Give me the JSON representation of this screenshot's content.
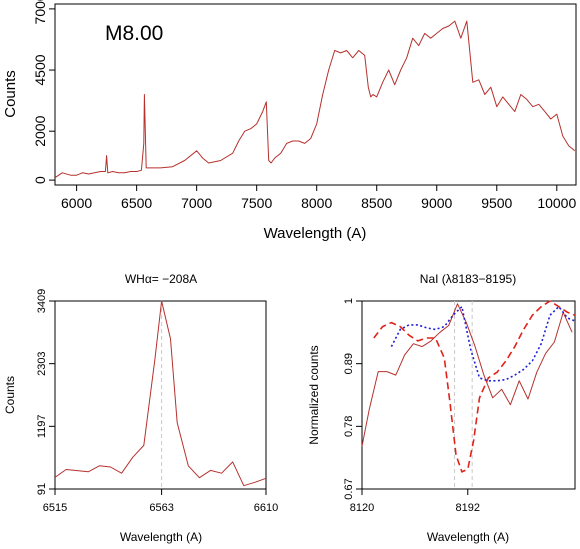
{
  "colors": {
    "spectrum": "#b5312d",
    "template_red": "#e0231b",
    "template_blue": "#1f1fd6",
    "marker": "#c8c8c8"
  },
  "chart_data": [
    {
      "type": "line",
      "annotation": "M8.00",
      "xlabel": "Wavelength (A)",
      "ylabel": "Counts",
      "xlim": [
        5820,
        10160
      ],
      "ylim": [
        -200,
        7200
      ],
      "xticks": [
        6000,
        6500,
        7000,
        7500,
        8000,
        8500,
        9000,
        9500,
        10000
      ],
      "yticks": [
        0,
        2000,
        4500,
        7000
      ],
      "series": [
        {
          "x": [
            5820,
            5880,
            5950,
            6000,
            6050,
            6100,
            6150,
            6200,
            6240,
            6250,
            6260,
            6300,
            6350,
            6400,
            6450,
            6500,
            6540,
            6560,
            6565,
            6580,
            6620,
            6700,
            6800,
            6900,
            7000,
            7050,
            7100,
            7200,
            7300,
            7350,
            7400,
            7450,
            7500,
            7550,
            7580,
            7600,
            7620,
            7650,
            7700,
            7750,
            7800,
            7850,
            7900,
            7950,
            8000,
            8050,
            8100,
            8150,
            8200,
            8250,
            8300,
            8350,
            8400,
            8430,
            8450,
            8470,
            8500,
            8550,
            8600,
            8650,
            8700,
            8750,
            8800,
            8850,
            8900,
            8950,
            9000,
            9050,
            9100,
            9150,
            9200,
            9250,
            9300,
            9350,
            9400,
            9450,
            9500,
            9550,
            9600,
            9650,
            9700,
            9750,
            9800,
            9850,
            9900,
            9950,
            10000,
            10050,
            10100,
            10150
          ],
          "y": [
            100,
            300,
            200,
            200,
            300,
            250,
            300,
            350,
            350,
            1000,
            300,
            350,
            300,
            300,
            350,
            350,
            400,
            1500,
            3500,
            500,
            500,
            500,
            550,
            800,
            1200,
            900,
            700,
            800,
            1100,
            1600,
            2000,
            2100,
            2300,
            2800,
            3200,
            800,
            700,
            900,
            1100,
            1500,
            1600,
            1600,
            1500,
            1700,
            2300,
            3500,
            4500,
            5300,
            5200,
            5300,
            5000,
            5300,
            5100,
            3800,
            3400,
            3500,
            3400,
            4000,
            4500,
            3900,
            4500,
            5000,
            5800,
            5500,
            6000,
            5800,
            6000,
            6200,
            6300,
            6500,
            5800,
            6500,
            4000,
            4100,
            3500,
            3800,
            3000,
            3400,
            3100,
            2800,
            3500,
            3300,
            3000,
            3100,
            2800,
            2500,
            2700,
            1800,
            1400,
            1200
          ]
        }
      ]
    },
    {
      "type": "line",
      "title": "WHα= −208A",
      "xlabel": "Wavelength (A)",
      "ylabel": "Counts",
      "xlim": [
        6515,
        6610
      ],
      "ylim": [
        91,
        3409
      ],
      "xticks": [
        6515,
        6563,
        6610
      ],
      "yticks": [
        91,
        1197,
        2303,
        3409
      ],
      "marker_x": 6563,
      "series": [
        {
          "x": [
            6515,
            6520,
            6530,
            6535,
            6540,
            6545,
            6550,
            6555,
            6560,
            6563,
            6567,
            6570,
            6575,
            6580,
            6585,
            6590,
            6595,
            6600,
            6605,
            6610
          ],
          "y": [
            295,
            435,
            395,
            500,
            480,
            370,
            650,
            860,
            2380,
            3409,
            2740,
            1260,
            500,
            290,
            420,
            370,
            570,
            150,
            210,
            280
          ]
        }
      ]
    },
    {
      "type": "line",
      "title": "NaI (λ8183−8195)",
      "xlabel": "Wavelength (A)",
      "ylabel": "Normalized counts",
      "xlim": [
        8120,
        8265
      ],
      "ylim": [
        0.67,
        1.0
      ],
      "xticks": [
        8120,
        8192
      ],
      "yticks": [
        0.67,
        0.78,
        0.89,
        1
      ],
      "markers_x": [
        8183,
        8195
      ],
      "series": [
        {
          "style": "solid",
          "x": [
            8120,
            8125,
            8131,
            8137,
            8143,
            8149,
            8155,
            8161,
            8167,
            8173,
            8179,
            8185,
            8191,
            8197,
            8203,
            8209,
            8215,
            8221,
            8227,
            8233,
            8239,
            8245,
            8251,
            8257,
            8263
          ],
          "y": [
            0.745,
            0.81,
            0.876,
            0.876,
            0.87,
            0.905,
            0.925,
            0.92,
            0.93,
            0.945,
            0.957,
            0.995,
            0.962,
            0.92,
            0.87,
            0.83,
            0.845,
            0.818,
            0.86,
            0.828,
            0.875,
            0.908,
            0.928,
            0.98,
            0.945
          ]
        },
        {
          "style": "dashed",
          "color": "template_red",
          "x": [
            8128,
            8134,
            8140,
            8146,
            8152,
            8158,
            8164,
            8170,
            8176,
            8180,
            8184,
            8188,
            8192,
            8196,
            8200,
            8206,
            8212,
            8218,
            8224,
            8230,
            8236,
            8242,
            8248,
            8254,
            8260,
            8265
          ],
          "y": [
            0.935,
            0.955,
            0.962,
            0.955,
            0.94,
            0.93,
            0.935,
            0.935,
            0.9,
            0.82,
            0.73,
            0.7,
            0.705,
            0.755,
            0.83,
            0.865,
            0.875,
            0.895,
            0.92,
            0.95,
            0.975,
            0.99,
            1.0,
            0.99,
            0.98,
            0.975
          ]
        },
        {
          "style": "dotted",
          "color": "template_blue",
          "x": [
            8140,
            8146,
            8152,
            8158,
            8164,
            8170,
            8176,
            8182,
            8188,
            8194,
            8200,
            8206,
            8212,
            8218,
            8224,
            8230,
            8236,
            8242,
            8248,
            8254,
            8260,
            8265
          ],
          "y": [
            0.92,
            0.95,
            0.958,
            0.958,
            0.953,
            0.95,
            0.955,
            0.975,
            0.99,
            0.915,
            0.865,
            0.86,
            0.86,
            0.862,
            0.87,
            0.88,
            0.895,
            0.925,
            0.975,
            0.99,
            0.97,
            0.965
          ]
        }
      ]
    }
  ]
}
